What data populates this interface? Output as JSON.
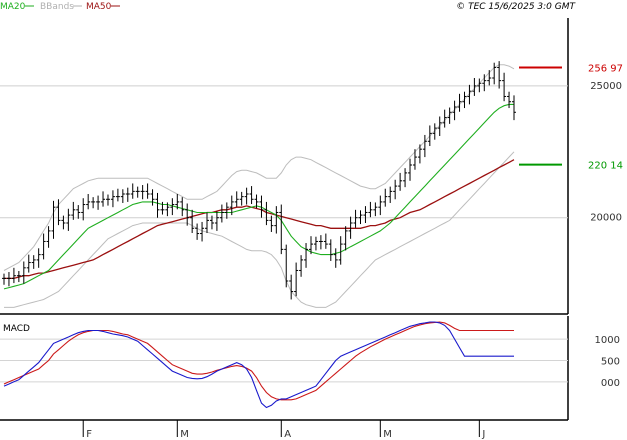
{
  "header": {
    "legend": [
      {
        "label": "MA20",
        "color": "#1fae1f"
      },
      {
        "label": "BBands",
        "color": "#b0b0b0"
      },
      {
        "label": "MA50",
        "color": "#9b1010"
      }
    ],
    "copyright": "© TEC 15/6/2025 3:0 GMT"
  },
  "price_panel": {
    "y_ticks": [
      {
        "value": 250,
        "label": "25000"
      },
      {
        "value": 200,
        "label": "20000"
      }
    ],
    "ylim": [
      165,
      275
    ],
    "tags": [
      {
        "label": "256 97",
        "value": 256.97,
        "color": "#cc0000"
      },
      {
        "label": "220 14",
        "value": 220.14,
        "color": "#009900"
      }
    ]
  },
  "macd_panel": {
    "title": "MACD",
    "y_ticks": [
      {
        "value": 10,
        "label": "1000"
      },
      {
        "value": 5,
        "label": "500"
      },
      {
        "value": 0,
        "label": "000"
      }
    ],
    "ylim": [
      -8,
      14
    ]
  },
  "x_axis": {
    "months": [
      {
        "label": "F",
        "bar": 16
      },
      {
        "label": "M",
        "bar": 35
      },
      {
        "label": "A",
        "bar": 56
      },
      {
        "label": "M",
        "bar": 76
      },
      {
        "label": "J",
        "bar": 96
      }
    ]
  },
  "chart_data": {
    "type": "ohlc",
    "n_bars": 104,
    "series": [
      {
        "name": "MA20",
        "color": "#1fae1f"
      },
      {
        "name": "BBands",
        "color": "#b0b0b0"
      },
      {
        "name": "MA50",
        "color": "#9b1010"
      },
      {
        "name": "MACD",
        "color": "#1a1acc"
      },
      {
        "name": "Signal",
        "color": "#cc1a1a"
      }
    ],
    "close": [
      177,
      177,
      178,
      178,
      181,
      183,
      184,
      186,
      191,
      195,
      204,
      199,
      198,
      201,
      203,
      202,
      205,
      206,
      206,
      206,
      207,
      207,
      208,
      208,
      209,
      209,
      210,
      210,
      210,
      209,
      207,
      203,
      203,
      204,
      205,
      206,
      203,
      200,
      196,
      194,
      196,
      199,
      198,
      200,
      202,
      204,
      206,
      207,
      208,
      209,
      207,
      206,
      203,
      199,
      197,
      202,
      188,
      176,
      172,
      180,
      184,
      188,
      190,
      191,
      191,
      190,
      186,
      184,
      190,
      195,
      198,
      200,
      201,
      202,
      203,
      204,
      206,
      208,
      210,
      212,
      214,
      217,
      220,
      223,
      226,
      229,
      232,
      234,
      236,
      238,
      240,
      242,
      244,
      246,
      248,
      250,
      251,
      252,
      253,
      257,
      252,
      246,
      244,
      240
    ],
    "ma20": [
      173,
      173.5,
      174,
      174.5,
      175,
      176,
      177,
      178,
      179,
      180,
      182,
      184,
      186,
      188,
      190,
      192,
      194,
      196,
      197,
      198,
      199,
      200,
      201,
      202,
      203,
      204,
      205,
      205.5,
      206,
      206,
      206,
      205.5,
      205,
      205,
      204.5,
      204,
      203.5,
      203,
      202.5,
      202,
      202,
      202,
      202,
      202,
      202,
      202,
      202,
      202.5,
      203,
      203.5,
      204,
      204.5,
      204,
      203,
      202,
      201,
      199,
      196,
      193,
      191,
      189,
      188,
      187,
      186.5,
      186,
      186,
      186,
      186.5,
      187,
      188,
      189,
      190,
      191,
      192,
      193,
      194,
      195,
      196.5,
      198,
      200,
      202,
      204,
      206,
      208,
      210,
      212,
      214,
      216,
      218,
      220,
      222,
      224,
      226,
      228,
      230,
      232,
      234,
      236,
      238,
      240,
      241.5,
      242.5,
      243,
      243
    ],
    "bb_upper": [
      180,
      181,
      182,
      183,
      185,
      187,
      189,
      192,
      195,
      198,
      202,
      205,
      207,
      209,
      211,
      212,
      213,
      214,
      214.5,
      215,
      215,
      215,
      215,
      215,
      215,
      215,
      215,
      215,
      215,
      215,
      214,
      213,
      212,
      211,
      210,
      209,
      208,
      207,
      207,
      207,
      207,
      208,
      209,
      210,
      212,
      214,
      216,
      217.5,
      218,
      218,
      217.5,
      217,
      216,
      215,
      215,
      215,
      217,
      220,
      222,
      223,
      223,
      222.5,
      222,
      221,
      220,
      219,
      218,
      217,
      216,
      215,
      214,
      213,
      212,
      211.5,
      211,
      211,
      212,
      213,
      215,
      217,
      219,
      221,
      223,
      225,
      227,
      229,
      231,
      233,
      235,
      237,
      239,
      241,
      243,
      245,
      247,
      249,
      251,
      253,
      255,
      257,
      258,
      258,
      257.5,
      256.5
    ],
    "bb_lower": [
      166,
      166,
      166,
      166.5,
      167,
      167.5,
      168,
      168.5,
      169,
      170,
      171,
      172,
      174,
      176,
      178,
      180,
      182,
      184,
      186,
      188,
      190,
      192,
      193,
      194,
      195,
      196,
      197,
      197.5,
      198,
      198,
      198,
      198,
      198,
      198,
      198,
      198,
      198,
      198,
      197,
      196,
      195,
      194.5,
      194,
      193.5,
      193,
      192,
      191,
      190,
      189,
      188,
      187.5,
      187.5,
      187.5,
      187,
      186,
      184,
      181,
      176,
      172,
      170,
      168,
      167,
      166.5,
      166,
      166,
      166,
      167,
      168,
      170,
      172,
      174,
      176,
      178,
      180,
      182,
      184,
      185,
      186,
      187,
      188,
      189,
      190,
      191,
      192,
      193,
      194,
      195,
      196,
      197,
      198,
      199,
      201,
      203,
      205,
      207,
      209,
      211,
      213,
      215,
      217,
      219,
      221,
      223,
      225
    ],
    "ma50": [
      177,
      177,
      177,
      177.5,
      178,
      178,
      178.5,
      179,
      179,
      179.5,
      180,
      180.5,
      181,
      181.5,
      182,
      182.5,
      183,
      183.5,
      184,
      185,
      186,
      187,
      188,
      189,
      190,
      191,
      192,
      193,
      194,
      195,
      196,
      197,
      197.5,
      198,
      198.5,
      199,
      199.5,
      200,
      200.5,
      201,
      201.5,
      202,
      202,
      202.5,
      203,
      203,
      203.5,
      204,
      204,
      204.5,
      204,
      203.5,
      203,
      202,
      201.5,
      201,
      200.5,
      200,
      199.5,
      199,
      198.5,
      198,
      197.5,
      197,
      197,
      196.5,
      196,
      196,
      196,
      196,
      196,
      196,
      196,
      196.5,
      197,
      197,
      197.5,
      198,
      199,
      199.5,
      200,
      201,
      202,
      202.5,
      203,
      204,
      205,
      206,
      207,
      208,
      209,
      210,
      211,
      212,
      213,
      214,
      215,
      216,
      217,
      218,
      219,
      220,
      221,
      222
    ],
    "macd": [
      -1,
      -0.5,
      0,
      0.5,
      1.5,
      2.5,
      3.5,
      4.5,
      6,
      7.5,
      9,
      9.5,
      10,
      10.5,
      11,
      11.5,
      11.8,
      12,
      12,
      12,
      11.8,
      11.5,
      11.2,
      11,
      10.8,
      10.5,
      10,
      9.5,
      8.5,
      7.5,
      6.5,
      5.5,
      4.5,
      3.5,
      2.5,
      2,
      1.5,
      1,
      0.8,
      0.7,
      0.8,
      1.2,
      1.8,
      2.5,
      3,
      3.5,
      4,
      4.5,
      4,
      3,
      1,
      -2,
      -5,
      -6,
      -5.5,
      -4.5,
      -4,
      -4,
      -3.5,
      -3,
      -2.5,
      -2,
      -1.5,
      -1,
      0.5,
      2,
      3.5,
      5,
      6,
      6.5,
      7,
      7.5,
      8,
      8.5,
      9,
      9.5,
      10,
      10.5,
      11,
      11.5,
      12,
      12.5,
      13,
      13.3,
      13.6,
      13.8,
      14,
      14,
      13.8,
      13.2,
      12,
      10,
      8,
      6,
      6,
      6,
      6,
      6,
      6,
      6,
      6,
      6,
      6,
      6
    ],
    "signal": [
      -0.5,
      0,
      0.5,
      1,
      1.5,
      2,
      2.5,
      3,
      4,
      5,
      6.5,
      7.5,
      8.5,
      9.5,
      10.3,
      11,
      11.5,
      11.8,
      12,
      12,
      12,
      12,
      11.8,
      11.5,
      11.2,
      11,
      10.5,
      10,
      9.5,
      9,
      8,
      7,
      6,
      5,
      4,
      3.5,
      3,
      2.5,
      2,
      1.8,
      1.8,
      2,
      2.3,
      2.7,
      3,
      3.3,
      3.6,
      3.8,
      3.6,
      3.2,
      2.5,
      1,
      -1,
      -2.5,
      -3.5,
      -4,
      -4.2,
      -4.2,
      -4.2,
      -4,
      -3.5,
      -3,
      -2.5,
      -2,
      -1,
      0,
      1,
      2,
      3,
      4,
      5,
      6,
      6.8,
      7.5,
      8.2,
      8.8,
      9.4,
      10,
      10.5,
      11,
      11.5,
      12,
      12.5,
      13,
      13.3,
      13.6,
      13.8,
      13.9,
      14,
      13.8,
      13.2,
      12.5,
      12,
      12,
      12,
      12,
      12,
      12,
      12,
      12,
      12,
      12,
      12,
      12
    ]
  }
}
